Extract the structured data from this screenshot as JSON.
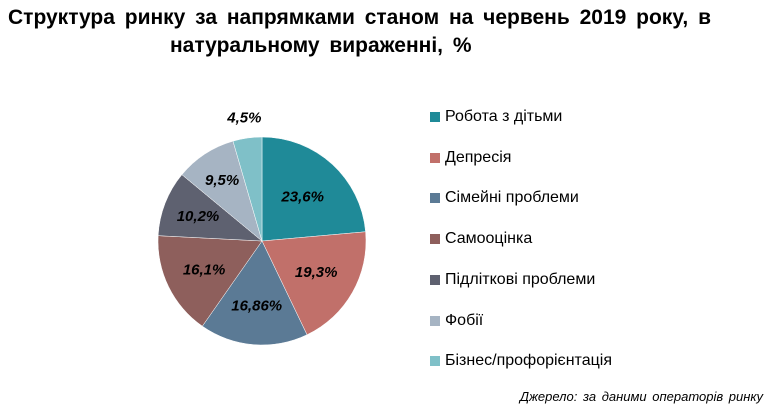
{
  "chart_data": {
    "type": "pie",
    "title_line1": "Структура  ринку  за напрямками  станом  на червень  2019  року,  в",
    "title_line2": "натуральному  вираженні,  %",
    "slices": [
      {
        "name": "Робота з дітьми",
        "value": 23.6,
        "label": "23,6%",
        "color": "#1f8a98"
      },
      {
        "name": "Депресія",
        "value": 19.3,
        "label": "19,3%",
        "color": "#c1706a"
      },
      {
        "name": "Сімейні проблеми",
        "value": 16.86,
        "label": "16,86%",
        "color": "#5b7a95"
      },
      {
        "name": "Самооцінка",
        "value": 16.1,
        "label": "16,1%",
        "color": "#8e5f5c"
      },
      {
        "name": "Підліткові проблеми",
        "value": 10.2,
        "label": "10,2%",
        "color": "#5e6170"
      },
      {
        "name": "Фобії",
        "value": 9.5,
        "label": "9,5%",
        "color": "#a6b4c3"
      },
      {
        "name": "Бізнес/профорієнтація",
        "value": 4.5,
        "label": "4,5%",
        "color": "#7fc0c8"
      }
    ],
    "legend_position": "right"
  },
  "source": "Джерело: за даними операторів ринку"
}
